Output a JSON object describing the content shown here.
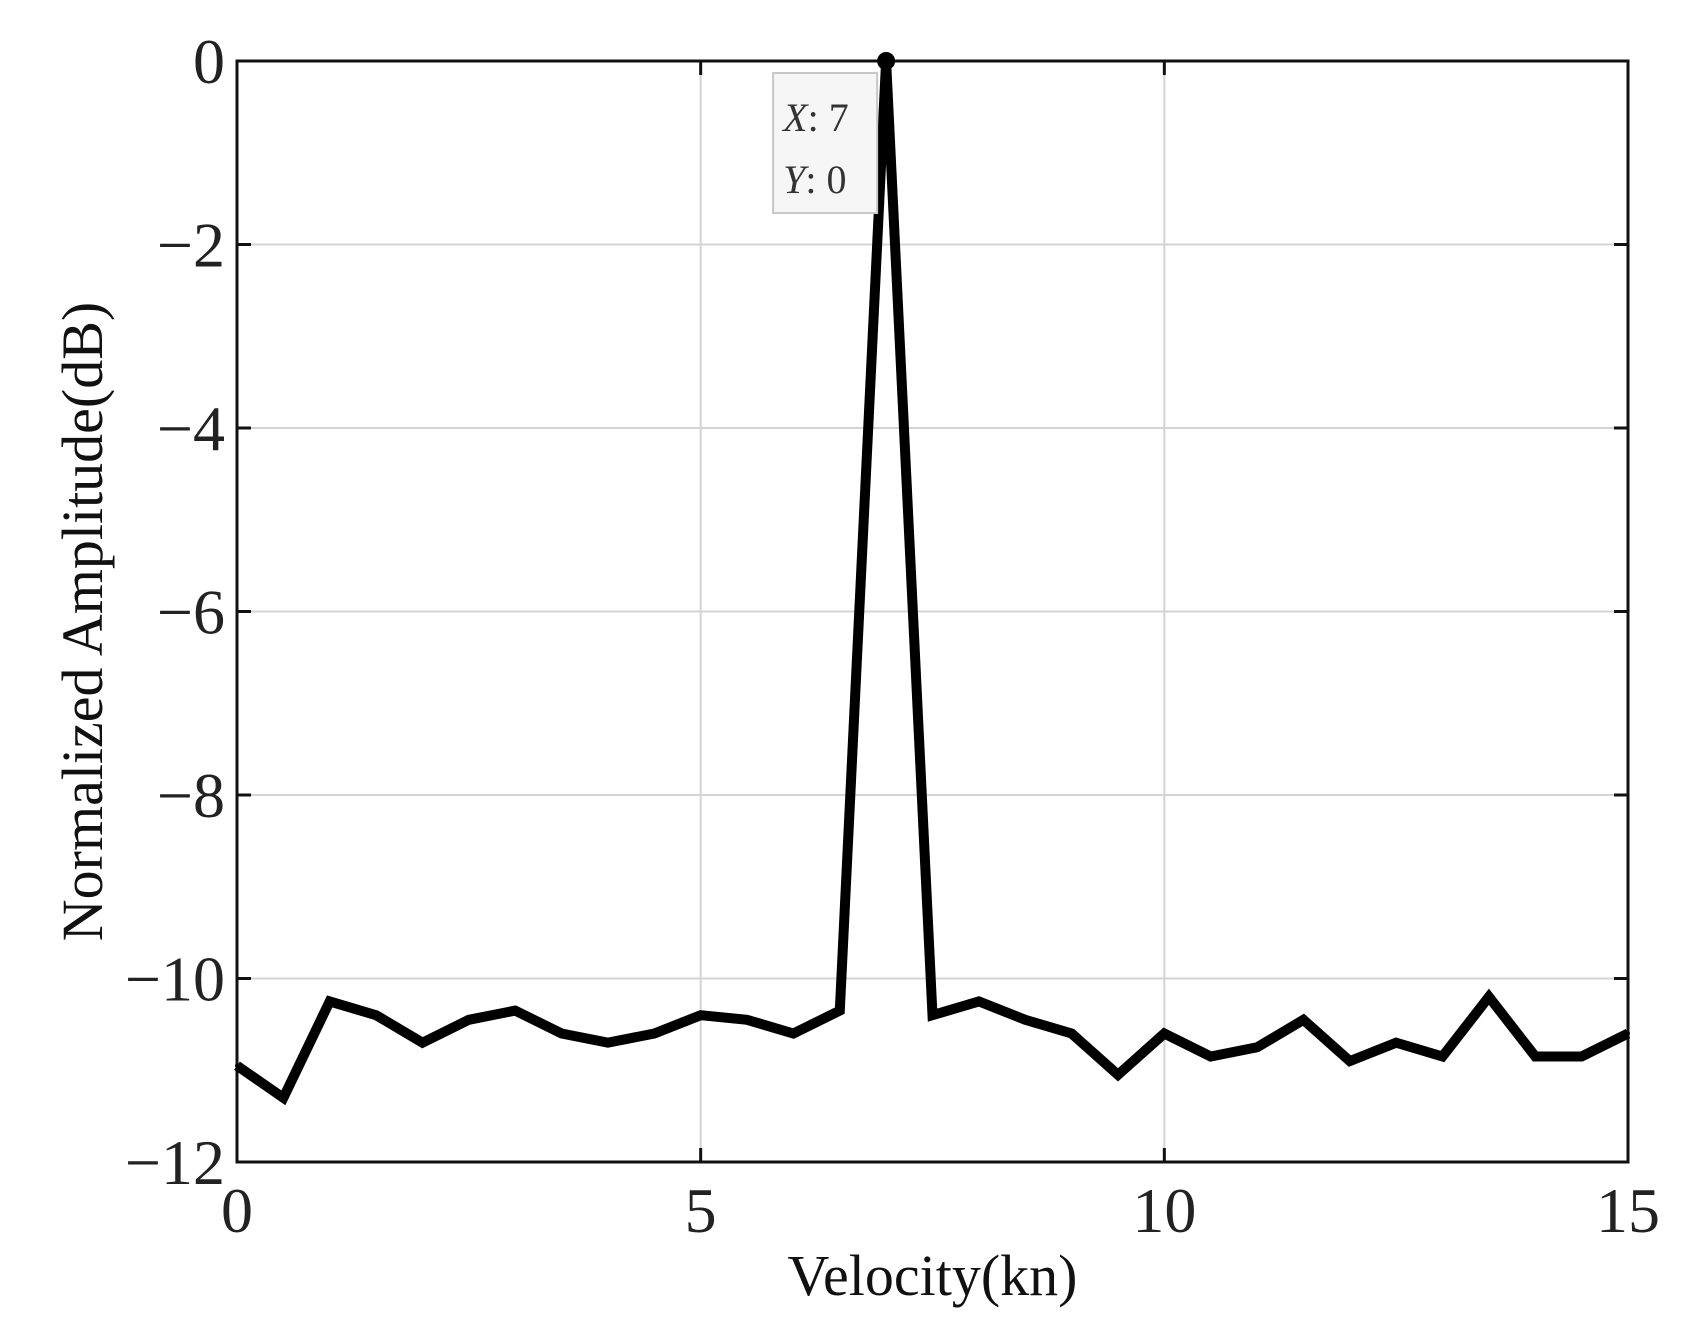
{
  "chart_data": {
    "type": "line",
    "xlabel": "Velocity(kn)",
    "ylabel": "Normalized Amplitude(dB)",
    "xlim": [
      0,
      15
    ],
    "ylim": [
      -12,
      0
    ],
    "xticks": [
      0,
      5,
      10,
      15
    ],
    "xtick_labels": [
      "0",
      "5",
      "10",
      "15"
    ],
    "yticks": [
      0,
      -2,
      -4,
      -6,
      -8,
      -10,
      -12
    ],
    "ytick_labels": [
      "0",
      "−2",
      "−4",
      "−6",
      "−8",
      "−10",
      "−12"
    ],
    "grid": true,
    "series": [
      {
        "color": "#000000",
        "x": [
          0,
          0.5,
          1,
          1.5,
          2,
          2.5,
          3,
          3.5,
          4,
          4.5,
          5,
          5.5,
          6,
          6.5,
          7,
          7.5,
          8,
          8.5,
          9,
          9.5,
          10,
          10.5,
          11,
          11.5,
          12,
          12.5,
          13,
          13.5,
          14,
          14.5,
          15
        ],
        "y": [
          -10.95,
          -11.3,
          -10.25,
          -10.4,
          -10.7,
          -10.45,
          -10.35,
          -10.6,
          -10.7,
          -10.6,
          -10.4,
          -10.45,
          -10.6,
          -10.35,
          0,
          -10.4,
          -10.25,
          -10.45,
          -10.6,
          -11.05,
          -10.6,
          -10.85,
          -10.75,
          -10.45,
          -10.9,
          -10.7,
          -10.85,
          -10.2,
          -10.85,
          -10.85,
          -10.6
        ]
      }
    ],
    "datatip": {
      "x_key": "X",
      "x_value": "7",
      "y_key": "Y",
      "y_value": "0",
      "point": [
        7,
        0
      ]
    }
  }
}
